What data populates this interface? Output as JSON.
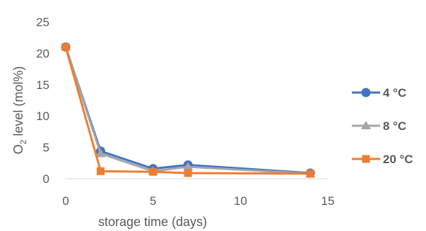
{
  "chart_data": {
    "type": "line",
    "xlabel": "storage time (days)",
    "ylabel": "O2 level (mol%)",
    "ylabel_parts": {
      "base": "O",
      "subscript": "2",
      "rest": " level (mol%)"
    },
    "xlim": [
      0,
      15
    ],
    "ylim": [
      0,
      25
    ],
    "x_ticks": [
      "0",
      "5",
      "10",
      "15"
    ],
    "y_ticks": [
      "0",
      "5",
      "10",
      "15",
      "20",
      "25"
    ],
    "grid": false,
    "legend_position": "right",
    "series": [
      {
        "name": "4 °C",
        "color": "#4472c4",
        "marker": "circle",
        "x": [
          0,
          2,
          5,
          7,
          14
        ],
        "y": [
          21.0,
          4.4,
          1.6,
          2.2,
          0.9
        ]
      },
      {
        "name": "8 °C",
        "color": "#a5a5a5",
        "marker": "triangle",
        "x": [
          0,
          2,
          5,
          7,
          14
        ],
        "y": [
          21.0,
          4.0,
          1.2,
          1.9,
          0.8
        ]
      },
      {
        "name": "20 °C",
        "color": "#ed7d31",
        "marker": "square",
        "x": [
          0,
          2,
          5,
          7,
          14
        ],
        "y": [
          21.0,
          1.2,
          1.1,
          0.9,
          0.8
        ]
      }
    ]
  }
}
